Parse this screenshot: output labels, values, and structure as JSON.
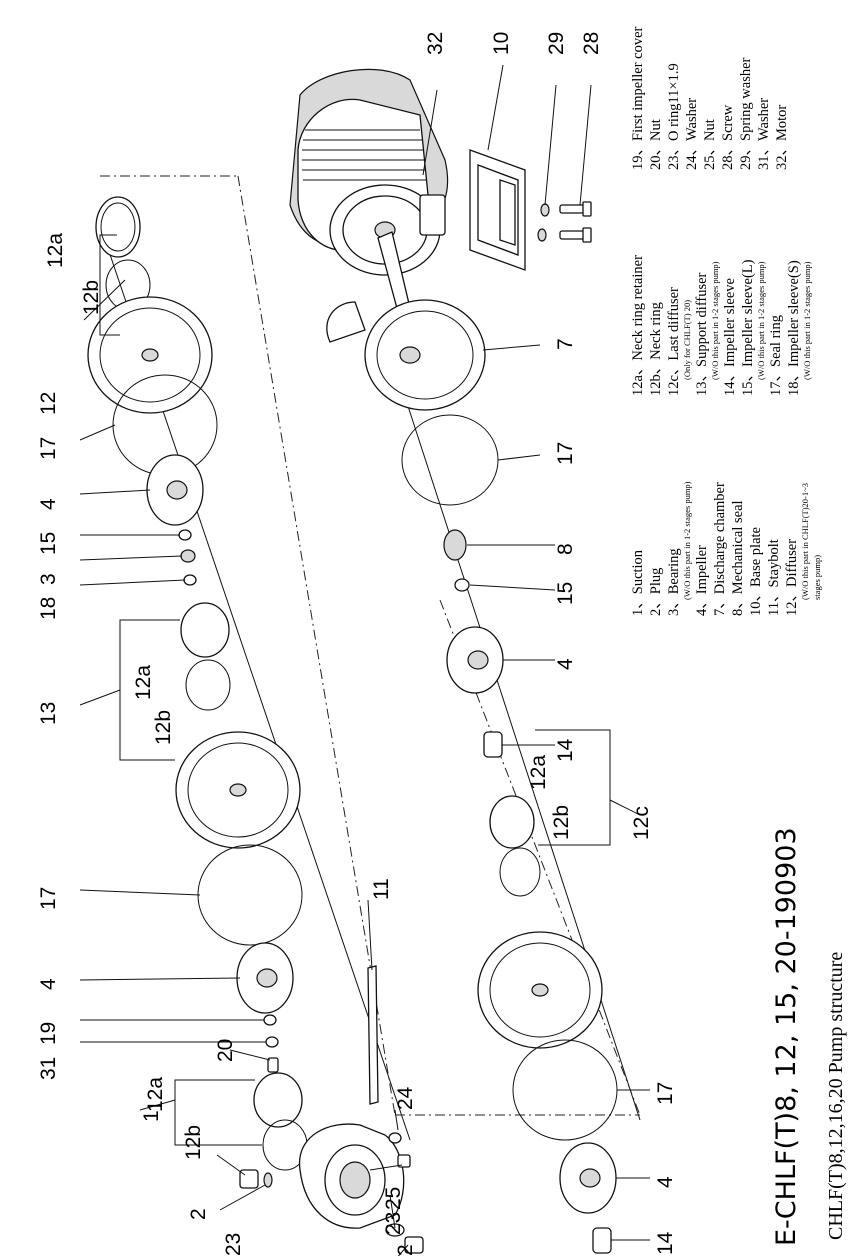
{
  "title": "E-CHLF(T)8, 12, 15, 20-190903",
  "subtitle": "CHLF(T)8,12,16,20 Pump structure",
  "callouts": [
    "32",
    "10",
    "29",
    "28",
    "12a",
    "12b",
    "12",
    "17",
    "4",
    "15",
    "3",
    "18",
    "12a",
    "13",
    "12b",
    "17",
    "4",
    "19",
    "31",
    "20",
    "11",
    "1",
    "12a",
    "12b",
    "2",
    "23",
    "24",
    "25",
    "23",
    "2",
    "7",
    "17",
    "8",
    "15",
    "4",
    "14",
    "12a",
    "12b",
    "12c",
    "17",
    "4",
    "14"
  ],
  "legend": [
    {
      "main": "1、Suction"
    },
    {
      "main": "2、Plug"
    },
    {
      "main": "3、Bearing"
    },
    {
      "main": "(W/O this part in 1-2 stages pump)",
      "small": true
    },
    {
      "main": "4、Impeller"
    },
    {
      "main": "7、Discharge chamber"
    },
    {
      "main": "8、Mechanical seal"
    },
    {
      "main": "10、Base plate"
    },
    {
      "main": "11、Staybolt"
    },
    {
      "main": "12、Diffuser"
    },
    {
      "main": "(W/O this part in CHLF(T)20-1~3",
      "small": true
    },
    {
      "main": "stages pump)",
      "small": true
    },
    {
      "main": "12a、Neck ring retainer"
    },
    {
      "main": "12b、Neck ring"
    },
    {
      "main": "12c、Last diffuser"
    },
    {
      "main": "(Only for CHLF(T) 20)",
      "small": true
    },
    {
      "main": "13、Support diffuser"
    },
    {
      "main": "(W/O this part in 1-2 stages pump)",
      "small": true
    },
    {
      "main": "14、Impeller sleeve"
    },
    {
      "main": "15、Impeller sleeve(L)"
    },
    {
      "main": "(W/O this part in 1-2 stages pump)",
      "small": true
    },
    {
      "main": "17、Seal ring"
    },
    {
      "main": "18、Impeller sleeve(S)"
    },
    {
      "main": "(W/O this part in 1-2 stages pump)",
      "small": true
    },
    {
      "main": "19、First impeller cover"
    },
    {
      "main": "20、Nut"
    },
    {
      "main": "23、O ring11×1.9"
    },
    {
      "main": "24、Washer"
    },
    {
      "main": "25、Nut"
    },
    {
      "main": "28、Screw"
    },
    {
      "main": "29、Spring washer"
    },
    {
      "main": "31、Washer"
    },
    {
      "main": "32、Motor"
    }
  ]
}
